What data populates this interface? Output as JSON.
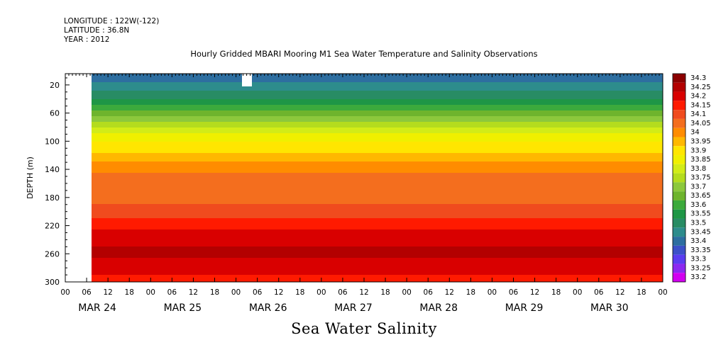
{
  "header": {
    "longitude": "LONGITUDE : 122W(-122)",
    "latitude": "LATITUDE : 36.8N",
    "year": "YEAR : 2012"
  },
  "chart_data": {
    "type": "heatmap",
    "title": "Hourly Gridded MBARI Mooring M1 Sea Water Temperature and Salinity Observations",
    "variable_label": "Sea Water Salinity",
    "ylabel": "DEPTH (m)",
    "y_axis": {
      "ticks": [
        20,
        60,
        100,
        140,
        180,
        220,
        260,
        300
      ],
      "range": [
        4,
        300
      ],
      "inverted": true
    },
    "x_axis": {
      "range_hours": [
        0,
        168
      ],
      "hour_ticks": [
        "00",
        "06",
        "12",
        "18",
        "00",
        "06",
        "12",
        "18",
        "00",
        "06",
        "12",
        "18",
        "00",
        "06",
        "12",
        "18",
        "00",
        "06",
        "12",
        "18",
        "00",
        "06",
        "12",
        "18",
        "00",
        "06",
        "12",
        "18",
        "00"
      ],
      "day_labels": [
        "MAR 24",
        "MAR 25",
        "MAR 26",
        "MAR 27",
        "MAR 28",
        "MAR 29",
        "MAR 30"
      ],
      "data_start_hour": 7
    },
    "colorbar": {
      "levels": [
        "34.3",
        "34.25",
        "34.2",
        "34.15",
        "34.1",
        "34.05",
        "34",
        "33.95",
        "33.9",
        "33.85",
        "33.8",
        "33.75",
        "33.7",
        "33.65",
        "33.6",
        "33.55",
        "33.5",
        "33.45",
        "33.4",
        "33.35",
        "33.3",
        "33.25",
        "33.2"
      ],
      "colors": [
        "#8b0000",
        "#b30000",
        "#d90000",
        "#ff1a00",
        "#f04b1e",
        "#f46e1e",
        "#ff8c00",
        "#ffb800",
        "#ffe600",
        "#f0f000",
        "#d2ec18",
        "#b4dc1e",
        "#8cc83c",
        "#6eb42d",
        "#3caa3c",
        "#1e9646",
        "#288c64",
        "#2d8c8c",
        "#2d6ea0",
        "#3c50c8",
        "#5a3cf0",
        "#8c28f0",
        "#d200f0"
      ]
    },
    "profile": {
      "depths_m": [
        10,
        20,
        30,
        40,
        50,
        60,
        70,
        80,
        90,
        100,
        110,
        120,
        130,
        140,
        150,
        160,
        170,
        180,
        190,
        200,
        210,
        220,
        230,
        240,
        250,
        260,
        270,
        280,
        290,
        300
      ],
      "salinity": [
        33.42,
        33.46,
        33.5,
        33.56,
        33.62,
        33.68,
        33.74,
        33.8,
        33.85,
        33.89,
        33.93,
        33.97,
        34.01,
        34.04,
        34.07,
        34.08,
        34.09,
        34.09,
        34.1,
        34.12,
        34.15,
        34.18,
        34.21,
        34.24,
        34.25,
        34.26,
        34.24,
        34.22,
        34.2,
        34.19
      ]
    }
  }
}
